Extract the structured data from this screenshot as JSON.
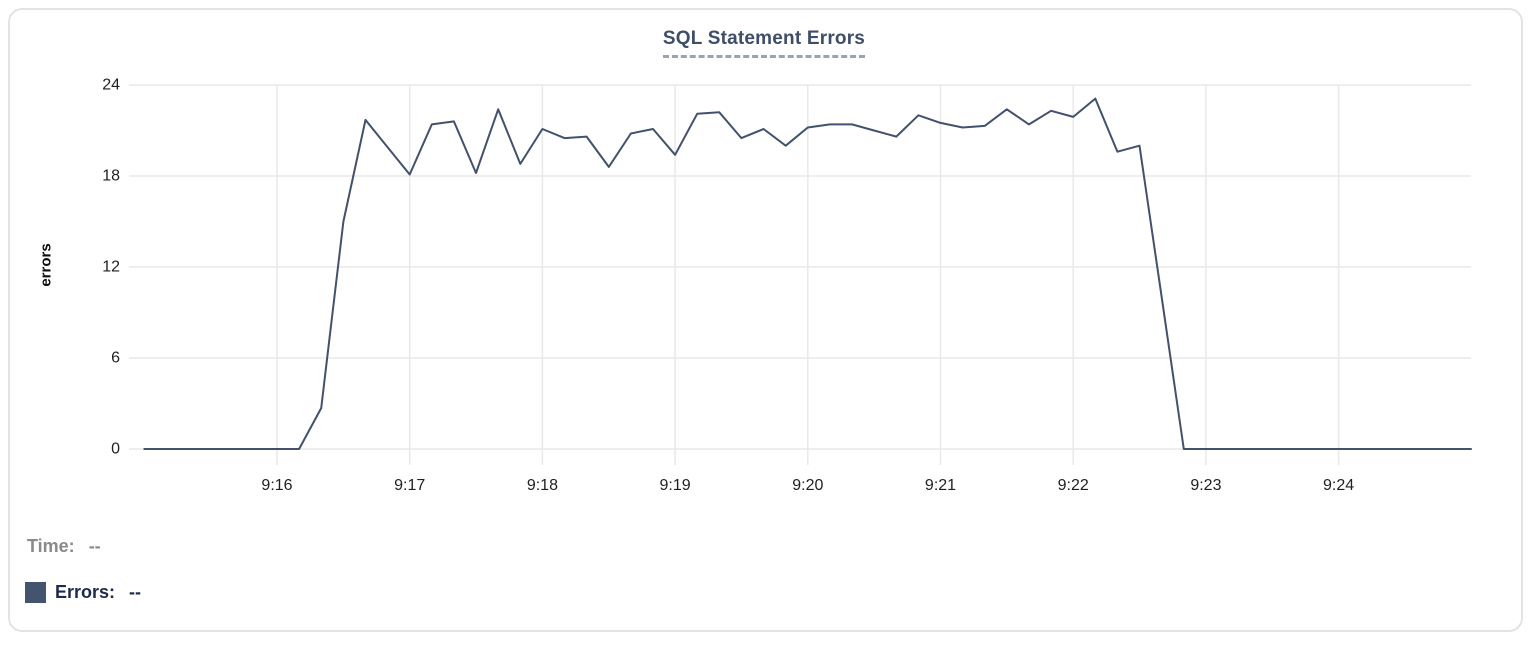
{
  "title": "SQL Statement Errors",
  "tooltip_readout": {
    "time_label": "Time:",
    "time_value": "--",
    "errors_label": "Errors:",
    "errors_value": "--"
  },
  "colors": {
    "line": "#42516d",
    "legend_swatch": "#44536e",
    "title": "#3e4d68",
    "title_underline": "#98a2ba",
    "time_text": "#8a8a8a",
    "errors_text": "#1e2a4d",
    "grid": "#e9e9e9",
    "tick_text": "#1f1f1f"
  },
  "chart_data": {
    "type": "line",
    "title": "SQL Statement Errors",
    "xlabel": "",
    "ylabel": "errors",
    "ylim": [
      0,
      24
    ],
    "yticks": [
      0,
      6,
      12,
      18,
      24
    ],
    "xticks": [
      "9:16",
      "9:17",
      "9:18",
      "9:19",
      "9:20",
      "9:21",
      "9:22",
      "9:23",
      "9:24"
    ],
    "grid": true,
    "legend_position": "none",
    "x_range": [
      "9:14:54",
      "9:25:00"
    ],
    "series": [
      {
        "name": "Errors",
        "x": [
          "9:15:00",
          "9:15:10",
          "9:15:20",
          "9:15:30",
          "9:15:40",
          "9:15:50",
          "9:16:00",
          "9:16:10",
          "9:16:20",
          "9:16:30",
          "9:16:40",
          "9:16:50",
          "9:17:00",
          "9:17:10",
          "9:17:20",
          "9:17:30",
          "9:17:40",
          "9:17:50",
          "9:18:00",
          "9:18:10",
          "9:18:20",
          "9:18:30",
          "9:18:40",
          "9:18:50",
          "9:19:00",
          "9:19:10",
          "9:19:20",
          "9:19:30",
          "9:19:40",
          "9:19:50",
          "9:20:00",
          "9:20:10",
          "9:20:20",
          "9:20:30",
          "9:20:40",
          "9:20:50",
          "9:21:00",
          "9:21:10",
          "9:21:20",
          "9:21:30",
          "9:21:40",
          "9:21:50",
          "9:22:00",
          "9:22:10",
          "9:22:20",
          "9:22:30",
          "9:22:40",
          "9:22:50",
          "9:23:00",
          "9:23:10",
          "9:23:20",
          "9:23:30",
          "9:23:40",
          "9:23:50",
          "9:24:00",
          "9:24:10",
          "9:24:20",
          "9:24:30",
          "9:24:40",
          "9:24:50",
          "9:25:00"
        ],
        "values": [
          0,
          0,
          0,
          0,
          0,
          0,
          0,
          0,
          2.7,
          15,
          21.7,
          19.9,
          18.1,
          21.4,
          21.6,
          18.2,
          22.4,
          18.8,
          21.1,
          20.5,
          20.6,
          18.6,
          20.8,
          21.1,
          19.4,
          22.1,
          22.2,
          20.5,
          21.1,
          20.0,
          21.2,
          21.4,
          21.4,
          21.0,
          20.6,
          22.0,
          21.5,
          21.2,
          21.3,
          22.4,
          21.4,
          22.3,
          21.9,
          23.1,
          19.6,
          20.0,
          10,
          0,
          0,
          0,
          0,
          0,
          0,
          0,
          0,
          0,
          0,
          0,
          0,
          0,
          0
        ]
      }
    ]
  }
}
